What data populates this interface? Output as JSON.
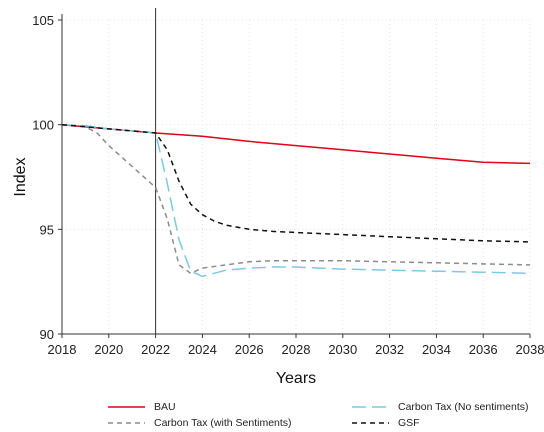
{
  "chart_data": {
    "type": "line",
    "title": "",
    "xlabel": "Years",
    "ylabel": "Index",
    "xlim": [
      2018,
      2038
    ],
    "ylim": [
      90,
      105
    ],
    "xticks": [
      2018,
      2020,
      2022,
      2024,
      2026,
      2028,
      2030,
      2032,
      2034,
      2036,
      2038
    ],
    "yticks": [
      90,
      95,
      100,
      105
    ],
    "x_tick_labels": [
      "2018",
      "2020",
      "2022",
      "2024",
      "2026",
      "2028",
      "2030",
      "2032",
      "2034",
      "2036",
      "2038"
    ],
    "y_tick_labels": [
      "90",
      "95",
      "100",
      "105"
    ],
    "grid": true,
    "vertical_line_x": 2022,
    "legend_position": "bottom",
    "series": [
      {
        "name": "BAU",
        "color": "#e2001a",
        "dash": "solid",
        "x": [
          2018,
          2020,
          2022,
          2024,
          2026,
          2028,
          2030,
          2032,
          2034,
          2036,
          2038
        ],
        "y": [
          100.0,
          99.8,
          99.6,
          99.45,
          99.2,
          99.0,
          98.8,
          98.6,
          98.4,
          98.2,
          98.15
        ]
      },
      {
        "name": "Carbon Tax (No sentiments)",
        "color": "#7ec8e3",
        "dash": "longdash",
        "x": [
          2018,
          2019,
          2020,
          2021,
          2022,
          2022.5,
          2023,
          2023.5,
          2024,
          2024.5,
          2025,
          2026,
          2027,
          2028,
          2030,
          2032,
          2034,
          2036,
          2038
        ],
        "y": [
          100.0,
          99.95,
          99.8,
          99.7,
          99.6,
          97.2,
          94.5,
          93.0,
          92.75,
          92.9,
          93.05,
          93.15,
          93.2,
          93.2,
          93.1,
          93.05,
          93.0,
          92.95,
          92.9
        ]
      },
      {
        "name": "Carbon Tax (with Sentiments)",
        "color": "#8c8c8c",
        "dash": "dash",
        "x": [
          2018,
          2019,
          2019.5,
          2020,
          2021,
          2022,
          2022.5,
          2023,
          2023.5,
          2024,
          2025,
          2026,
          2027,
          2028,
          2030,
          2032,
          2034,
          2036,
          2038
        ],
        "y": [
          100.0,
          99.9,
          99.6,
          99.0,
          98.0,
          97.0,
          95.5,
          93.3,
          92.9,
          93.15,
          93.3,
          93.45,
          93.5,
          93.5,
          93.5,
          93.45,
          93.4,
          93.35,
          93.3
        ]
      },
      {
        "name": "GSF",
        "color": "#111111",
        "dash": "dash",
        "x": [
          2018,
          2019,
          2020,
          2021,
          2022,
          2022.5,
          2023,
          2023.5,
          2024,
          2024.5,
          2025,
          2026,
          2027,
          2028,
          2030,
          2032,
          2034,
          2036,
          2038
        ],
        "y": [
          100.0,
          99.9,
          99.8,
          99.7,
          99.6,
          98.8,
          97.3,
          96.2,
          95.7,
          95.4,
          95.2,
          95.0,
          94.9,
          94.85,
          94.75,
          94.65,
          94.55,
          94.45,
          94.4
        ]
      }
    ]
  }
}
